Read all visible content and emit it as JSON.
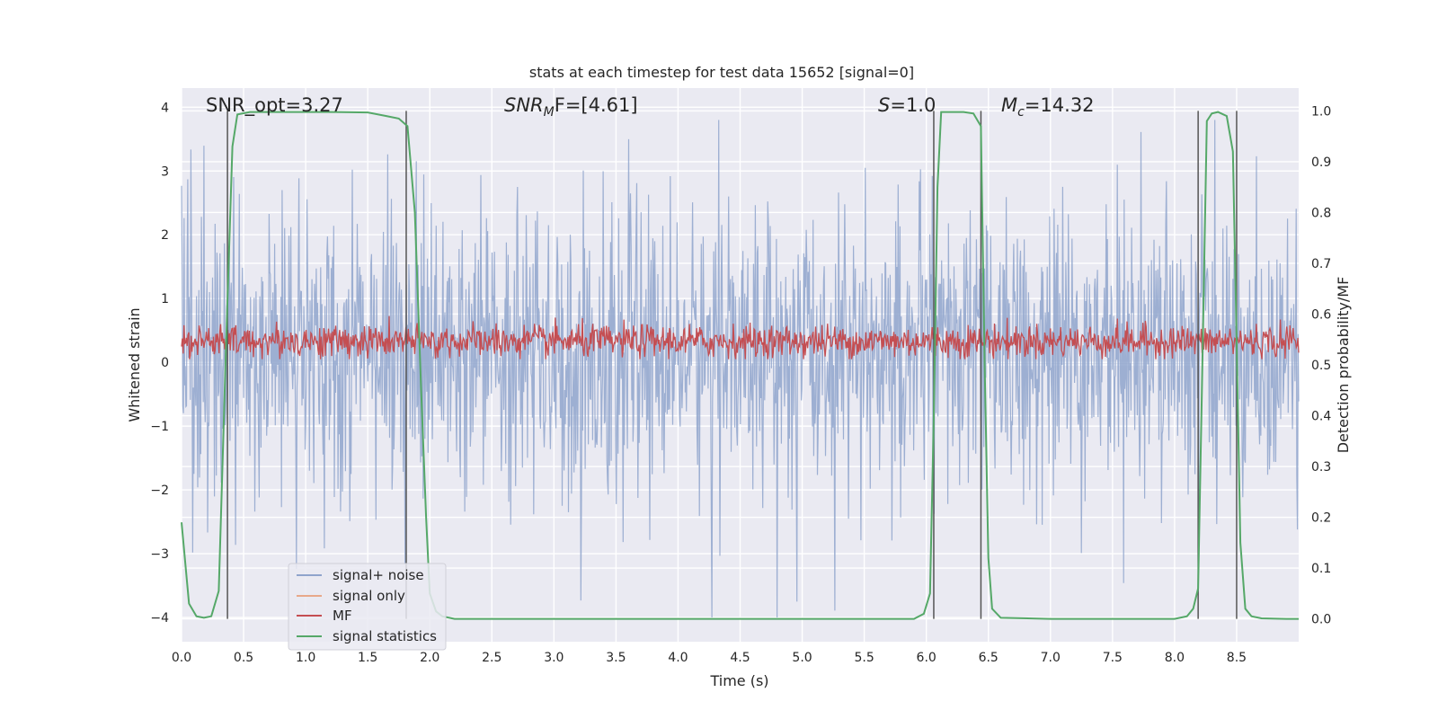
{
  "chart_data": {
    "type": "line",
    "title": "stats at each timestep for test data 15652 [signal=0]",
    "xlabel": "Time (s)",
    "ylabel_left": "Whitened strain",
    "ylabel_right": "Detection probability/MF",
    "xlim": [
      0,
      9.0
    ],
    "ylim_left": [
      -4.38,
      4.3
    ],
    "ylim_right": [
      -0.045,
      1.045
    ],
    "x_ticks": [
      "0.0",
      "0.5",
      "1.0",
      "1.5",
      "2.0",
      "2.5",
      "3.0",
      "3.5",
      "4.0",
      "4.5",
      "5.0",
      "5.5",
      "6.0",
      "6.5",
      "7.0",
      "7.5",
      "8.0",
      "8.5"
    ],
    "y_ticks_left": [
      "−4",
      "−3",
      "−2",
      "−1",
      "0",
      "1",
      "2",
      "3",
      "4"
    ],
    "y_ticks_right": [
      "0.0",
      "0.1",
      "0.2",
      "0.3",
      "0.4",
      "0.5",
      "0.6",
      "0.7",
      "0.8",
      "0.9",
      "1.0"
    ],
    "grid": true,
    "legend_position": "lower-left",
    "annotations": {
      "snr_opt": "SNR_opt=3.27",
      "snr_mf_sym": "SNR",
      "snr_mf_sub": "M",
      "snr_mf_rest": "F=[4.61]",
      "s_sym": "S",
      "s_rest": "=1.0",
      "mc_sym": "M",
      "mc_sub": "c",
      "mc_rest": "=14.32"
    },
    "series": [
      {
        "name": "signal+ noise",
        "color": "#8fa4cc",
        "axis": "left",
        "description_range": [
          -4.0,
          3.8
        ]
      },
      {
        "name": "signal only",
        "color": "#e8a88a",
        "axis": "left",
        "values": []
      },
      {
        "name": "MF",
        "color": "#c44e52",
        "axis": "left",
        "level_range": [
          0.05,
          1.0
        ]
      },
      {
        "name": "signal statistics",
        "color": "#55a868",
        "axis": "right",
        "x": [
          0.0,
          0.06,
          0.12,
          0.18,
          0.24,
          0.3,
          0.36,
          0.41,
          0.45,
          0.55,
          0.8,
          1.0,
          1.2,
          1.5,
          1.65,
          1.75,
          1.82,
          1.88,
          1.93,
          1.97,
          2.0,
          2.05,
          2.1,
          2.2,
          2.5,
          3.0,
          4.0,
          5.0,
          5.9,
          5.98,
          6.03,
          6.06,
          6.09,
          6.12,
          6.2,
          6.3,
          6.38,
          6.44,
          6.47,
          6.5,
          6.53,
          6.6,
          7.0,
          8.0,
          8.1,
          8.15,
          8.19,
          8.22,
          8.26,
          8.3,
          8.35,
          8.42,
          8.47,
          8.5,
          8.53,
          8.57,
          8.62,
          8.7,
          8.9,
          9.0
        ],
        "values": [
          0.19,
          0.03,
          0.005,
          0.002,
          0.005,
          0.055,
          0.55,
          0.93,
          0.993,
          0.998,
          0.998,
          0.998,
          0.998,
          0.997,
          0.99,
          0.985,
          0.97,
          0.8,
          0.45,
          0.2,
          0.05,
          0.015,
          0.005,
          0.0,
          0.0,
          0.0,
          0.0,
          0.0,
          0.0,
          0.01,
          0.05,
          0.4,
          0.85,
          0.998,
          0.998,
          0.998,
          0.995,
          0.97,
          0.5,
          0.12,
          0.02,
          0.002,
          0.0,
          0.0,
          0.005,
          0.02,
          0.06,
          0.45,
          0.98,
          0.995,
          0.998,
          0.99,
          0.92,
          0.55,
          0.15,
          0.02,
          0.005,
          0.001,
          0.0,
          0.0
        ]
      }
    ],
    "vertical_markers": [
      0.37,
      1.81,
      6.06,
      6.44,
      8.19,
      8.5
    ]
  }
}
